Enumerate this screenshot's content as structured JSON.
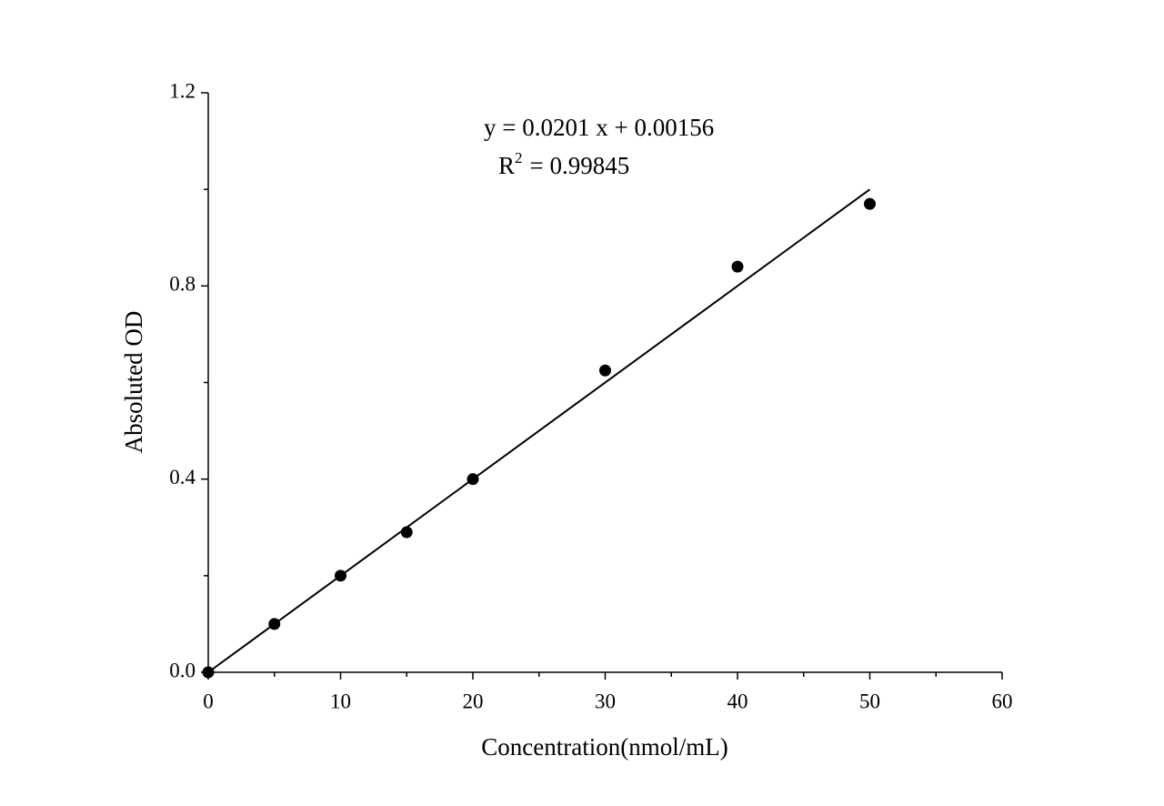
{
  "chart_data": {
    "type": "scatter",
    "x_label": "Concentration(nmol/mL)",
    "y_label": "Absoluted OD",
    "equation": "y = 0.0201 x + 0.00156",
    "r_squared": {
      "base": "R",
      "sup": "2",
      "rest": "= 0.99845"
    },
    "series": [
      {
        "mode": "markers",
        "color": "#000000",
        "x": [
          0,
          5,
          10,
          15,
          20,
          30,
          40,
          50
        ],
        "values": [
          0,
          0.1,
          0.2,
          0.29,
          0.4,
          0.625,
          0.84,
          0.97
        ]
      },
      {
        "mode": "line",
        "color": "#000000",
        "x": [
          0,
          50
        ],
        "values": [
          0,
          1.0
        ]
      }
    ],
    "xlim": [
      0,
      60
    ],
    "ylim": [
      0,
      1.2
    ],
    "xticks": [
      0,
      10,
      20,
      30,
      40,
      50,
      60
    ],
    "yticks": [
      {
        "value": 0,
        "label": "0.0"
      },
      0.4,
      0.8,
      1.2
    ],
    "xminor": [
      5,
      15,
      25,
      35,
      45,
      55
    ],
    "yminor": [
      0.2,
      0.6,
      1.0
    ],
    "grid": false
  }
}
